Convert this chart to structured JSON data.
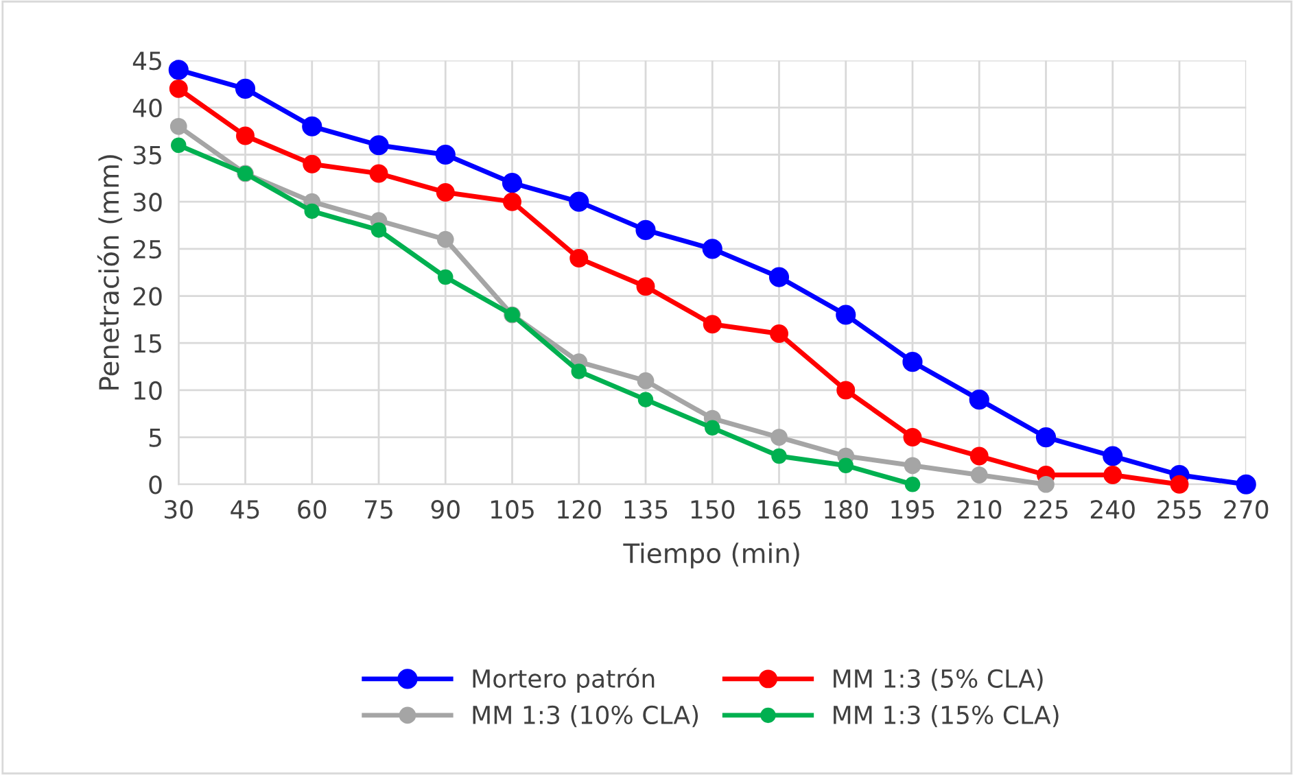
{
  "chart_data": {
    "type": "line",
    "xlabel": "Tiempo (min)",
    "ylabel": "Penetración (mm)",
    "categories": [
      "30",
      "45",
      "60",
      "75",
      "90",
      "105",
      "120",
      "135",
      "150",
      "165",
      "180",
      "195",
      "210",
      "225",
      "240",
      "255",
      "270"
    ],
    "series": [
      {
        "name": "Mortero patrón",
        "color": "#0000ff",
        "values": [
          44,
          42,
          38,
          36,
          35,
          32,
          30,
          27,
          25,
          22,
          18,
          13,
          9,
          5,
          3,
          1,
          0
        ]
      },
      {
        "name": "MM 1:3 (5% CLA)",
        "color": "#ff0000",
        "values": [
          42,
          37,
          34,
          33,
          31,
          30,
          24,
          21,
          17,
          16,
          10,
          5,
          3,
          1,
          1,
          0,
          null
        ]
      },
      {
        "name": "MM 1:3 (10% CLA)",
        "color": "#a5a5a5",
        "values": [
          38,
          33,
          30,
          28,
          26,
          18,
          13,
          11,
          7,
          5,
          3,
          2,
          1,
          0,
          null,
          null,
          null
        ]
      },
      {
        "name": "MM 1:3 (15% CLA)",
        "color": "#00b050",
        "values": [
          36,
          33,
          29,
          27,
          22,
          18,
          12,
          9,
          6,
          3,
          2,
          0,
          null,
          null,
          null,
          null,
          null
        ]
      }
    ],
    "ylim": [
      0,
      45
    ],
    "yticks": [
      0,
      5,
      10,
      15,
      20,
      25,
      30,
      35,
      40,
      45
    ],
    "grid": true,
    "legend": "bottom",
    "marker": "circle",
    "line_style": "solid"
  }
}
